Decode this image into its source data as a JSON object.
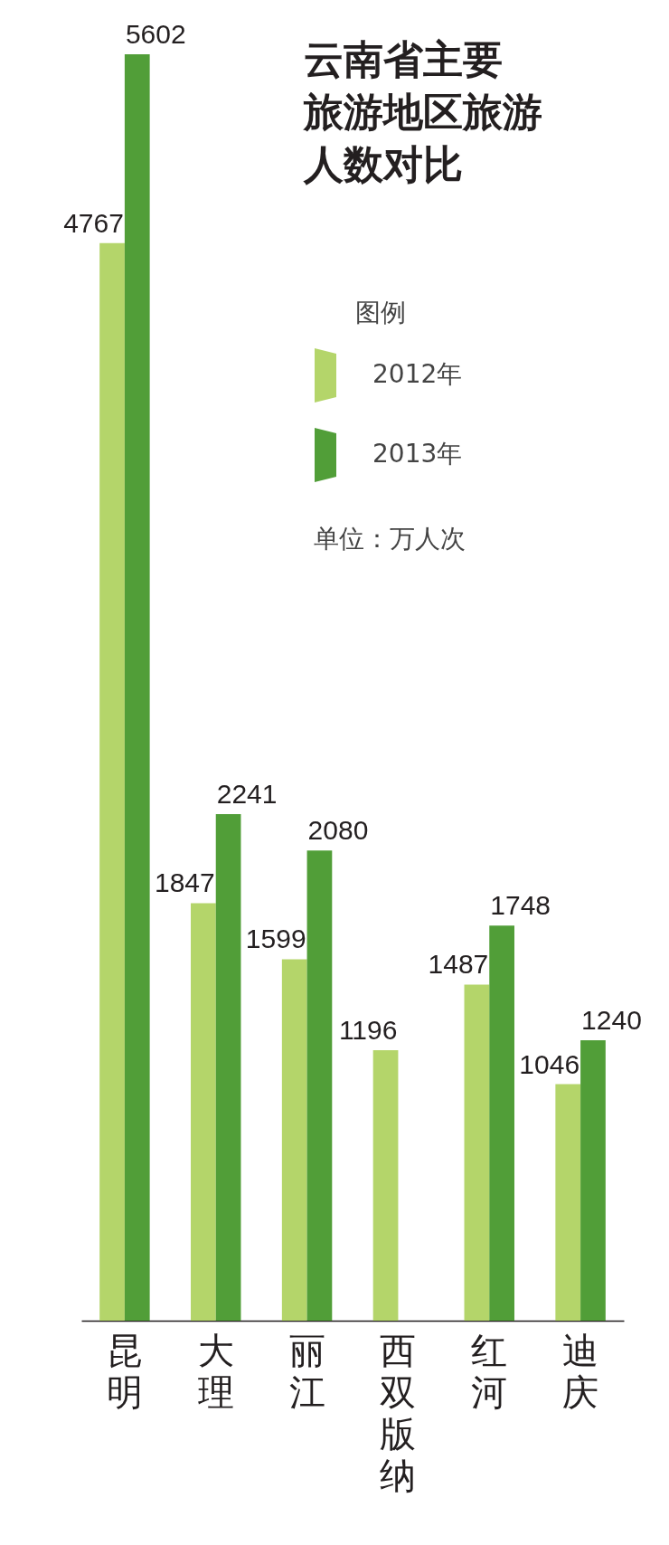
{
  "chart_data": {
    "type": "bar",
    "title": "云南省主要旅游地区旅游人数对比",
    "categories": [
      "昆明",
      "大理",
      "丽江",
      "西双版纳",
      "红河",
      "迪庆"
    ],
    "series": [
      {
        "name": "2012年",
        "color": "#b4d56a",
        "values": [
          4767,
          1847,
          1599,
          1196,
          1487,
          1046
        ]
      },
      {
        "name": "2013年",
        "color": "#519e38",
        "values": [
          5602,
          2241,
          2080,
          null,
          1748,
          1240
        ]
      }
    ],
    "legend_title": "图例",
    "legend": "top right",
    "data_labels": true,
    "annotations": [
      "单位：万人次"
    ]
  }
}
